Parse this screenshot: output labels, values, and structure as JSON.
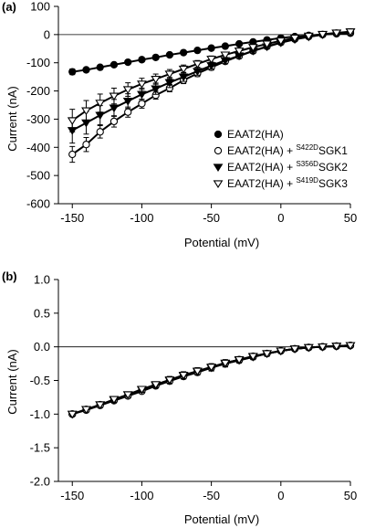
{
  "panels": [
    {
      "label": "(a)",
      "chart_data": {
        "type": "line",
        "xlabel": "Potential (mV)",
        "ylabel": "Current (nA)",
        "xlim": [
          -160,
          50
        ],
        "ylim": [
          -600,
          100
        ],
        "xticks": [
          -150,
          -100,
          -50,
          0,
          50
        ],
        "yticks": [
          100,
          0,
          -100,
          -200,
          -300,
          -400,
          -500,
          -600
        ],
        "x": [
          -150,
          -140,
          -130,
          -120,
          -110,
          -100,
          -90,
          -80,
          -70,
          -60,
          -50,
          -40,
          -30,
          -20,
          -10,
          0,
          10,
          20,
          30,
          40,
          50
        ],
        "legend_position": "right",
        "series": [
          {
            "name": "EAAT2(HA)",
            "name_prefix": "EAAT2(HA)",
            "name_sup": "",
            "name_suffix": "",
            "marker": "circle-filled",
            "values": [
              -132,
              -125,
              -116,
              -107,
              -98,
              -89,
              -81,
              -72,
              -64,
              -56,
              -48,
              -41,
              -33,
              -26,
              -19,
              -12,
              -7,
              -3,
              0,
              3,
              5
            ],
            "errors": [
              10,
              8,
              7,
              6,
              6,
              5,
              5,
              5,
              4,
              4,
              4,
              3,
              3,
              3,
              3,
              3,
              3,
              3,
              3,
              3,
              3
            ]
          },
          {
            "name": "EAAT2(HA) + S422DSGK1",
            "name_prefix": "EAAT2(HA) + ",
            "name_sup": "S422D",
            "name_suffix": "SGK1",
            "marker": "circle-open",
            "values": [
              -425,
              -390,
              -345,
              -308,
              -275,
              -245,
              -215,
              -190,
              -162,
              -138,
              -116,
              -95,
              -76,
              -58,
              -42,
              -28,
              -16,
              -7,
              0,
              5,
              9
            ],
            "errors": [
              28,
              25,
              22,
              20,
              18,
              16,
              14,
              13,
              12,
              11,
              10,
              9,
              8,
              7,
              6,
              5,
              5,
              4,
              4,
              4,
              4
            ]
          },
          {
            "name": "EAAT2(HA) + S356DSGK2",
            "name_prefix": "EAAT2(HA) + ",
            "name_sup": "S356D",
            "name_suffix": "SGK2",
            "marker": "triangle-down-filled",
            "values": [
              -340,
              -313,
              -286,
              -260,
              -236,
              -212,
              -192,
              -170,
              -150,
              -130,
              -110,
              -92,
              -75,
              -58,
              -43,
              -29,
              -17,
              -8,
              0,
              5,
              10
            ],
            "errors": [
              45,
              40,
              34,
              30,
              26,
              22,
              20,
              18,
              16,
              14,
              12,
              11,
              10,
              9,
              8,
              7,
              6,
              5,
              5,
              5,
              5
            ]
          },
          {
            "name": "EAAT2(HA) + S419DSGK3",
            "name_prefix": "EAAT2(HA) + ",
            "name_sup": "S419D",
            "name_suffix": "SGK3",
            "marker": "triangle-down-open",
            "values": [
              -305,
              -270,
              -243,
              -218,
              -195,
              -175,
              -158,
              -140,
              -122,
              -104,
              -87,
              -72,
              -58,
              -45,
              -33,
              -22,
              -12,
              -5,
              1,
              6,
              10
            ],
            "errors": [
              40,
              36,
              32,
              28,
              24,
              20,
              18,
              16,
              14,
              12,
              11,
              10,
              9,
              8,
              7,
              6,
              5,
              5,
              5,
              5,
              5
            ]
          }
        ]
      }
    },
    {
      "label": "(b)",
      "chart_data": {
        "type": "line",
        "xlabel": "Potential (mV)",
        "ylabel": "Current (nA)",
        "xlim": [
          -160,
          50
        ],
        "ylim": [
          -2.0,
          1.0
        ],
        "xticks": [
          -150,
          -100,
          -50,
          0,
          50
        ],
        "yticks": [
          1.0,
          0.5,
          0.0,
          -0.5,
          -1.0,
          -1.5,
          -2.0
        ],
        "ytick_labels": [
          "1.0",
          "0.5",
          "0.0",
          "-0.5",
          "-1.0",
          "-1.5",
          "-2.0"
        ],
        "x": [
          -150,
          -140,
          -130,
          -120,
          -110,
          -100,
          -90,
          -80,
          -70,
          -60,
          -50,
          -40,
          -30,
          -20,
          -10,
          0,
          10,
          20,
          30,
          40,
          50
        ],
        "series": [
          {
            "marker": "circle-filled",
            "values": [
              -1.0,
              -0.93,
              -0.86,
              -0.79,
              -0.72,
              -0.64,
              -0.57,
              -0.5,
              -0.43,
              -0.37,
              -0.3,
              -0.24,
              -0.19,
              -0.14,
              -0.1,
              -0.06,
              -0.03,
              -0.01,
              0.0,
              0.01,
              0.02
            ],
            "errors": [
              0.02,
              0.03,
              0.03,
              0.03,
              0.03,
              0.03,
              0.03,
              0.03,
              0.03,
              0.03,
              0.03,
              0.03,
              0.02,
              0.02,
              0.02,
              0.02,
              0.02,
              0.02,
              0.02,
              0.02,
              0.02
            ]
          },
          {
            "marker": "circle-open",
            "values": [
              -1.0,
              -0.94,
              -0.87,
              -0.8,
              -0.73,
              -0.66,
              -0.58,
              -0.51,
              -0.44,
              -0.38,
              -0.31,
              -0.25,
              -0.2,
              -0.15,
              -0.1,
              -0.06,
              -0.03,
              -0.01,
              0.0,
              0.01,
              0.02
            ],
            "errors": [
              0.02,
              0.03,
              0.03,
              0.03,
              0.03,
              0.03,
              0.03,
              0.03,
              0.03,
              0.03,
              0.03,
              0.03,
              0.02,
              0.02,
              0.02,
              0.02,
              0.02,
              0.02,
              0.02,
              0.02,
              0.02
            ]
          },
          {
            "marker": "triangle-down-filled",
            "values": [
              -1.0,
              -0.93,
              -0.86,
              -0.79,
              -0.71,
              -0.64,
              -0.57,
              -0.5,
              -0.43,
              -0.37,
              -0.31,
              -0.25,
              -0.2,
              -0.15,
              -0.1,
              -0.06,
              -0.03,
              -0.01,
              0.0,
              0.01,
              0.02
            ],
            "errors": [
              0.03,
              0.04,
              0.04,
              0.04,
              0.04,
              0.04,
              0.04,
              0.05,
              0.05,
              0.05,
              0.05,
              0.05,
              0.04,
              0.04,
              0.04,
              0.03,
              0.03,
              0.03,
              0.03,
              0.03,
              0.03
            ]
          },
          {
            "marker": "triangle-down-open",
            "values": [
              -1.0,
              -0.93,
              -0.86,
              -0.78,
              -0.71,
              -0.63,
              -0.56,
              -0.49,
              -0.42,
              -0.36,
              -0.3,
              -0.24,
              -0.19,
              -0.14,
              -0.1,
              -0.06,
              -0.03,
              -0.01,
              0.0,
              0.01,
              0.02
            ],
            "errors": [
              0.03,
              0.04,
              0.04,
              0.04,
              0.04,
              0.04,
              0.04,
              0.05,
              0.05,
              0.05,
              0.05,
              0.05,
              0.04,
              0.04,
              0.04,
              0.03,
              0.03,
              0.03,
              0.03,
              0.03,
              0.03
            ]
          }
        ]
      }
    }
  ]
}
